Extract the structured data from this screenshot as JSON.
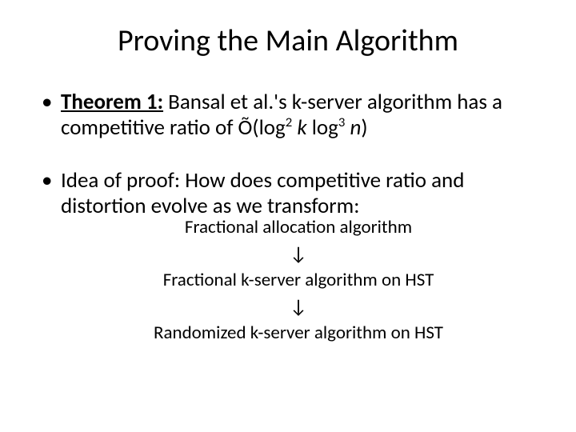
{
  "title": "Proving the Main Algorithm",
  "bullets": {
    "b1": {
      "label_prefix": "Theorem 1:",
      "text_before": " Bansal et al.'s k-server algorithm has a competitive ratio of Õ(log",
      "sup1": "2",
      "mid1": " ",
      "k": "k",
      "mid2": " log",
      "sup2": "3",
      "mid3": " ",
      "n": "n",
      "close": ")"
    },
    "b2": {
      "text": "Idea of proof:  How does competitive ratio and distortion evolve as we transform:"
    }
  },
  "steps": {
    "s1": "Fractional allocation algorithm",
    "a1": "↓",
    "s2": "Fractional k-server algorithm on HST",
    "a2": "↓",
    "s3": "Randomized k-server algorithm on HST"
  },
  "style": {
    "background": "#ffffff",
    "text_color": "#000000",
    "title_fontsize": 38,
    "body_fontsize": 27,
    "steps_fontsize": 23,
    "font_family": "Calibri"
  }
}
